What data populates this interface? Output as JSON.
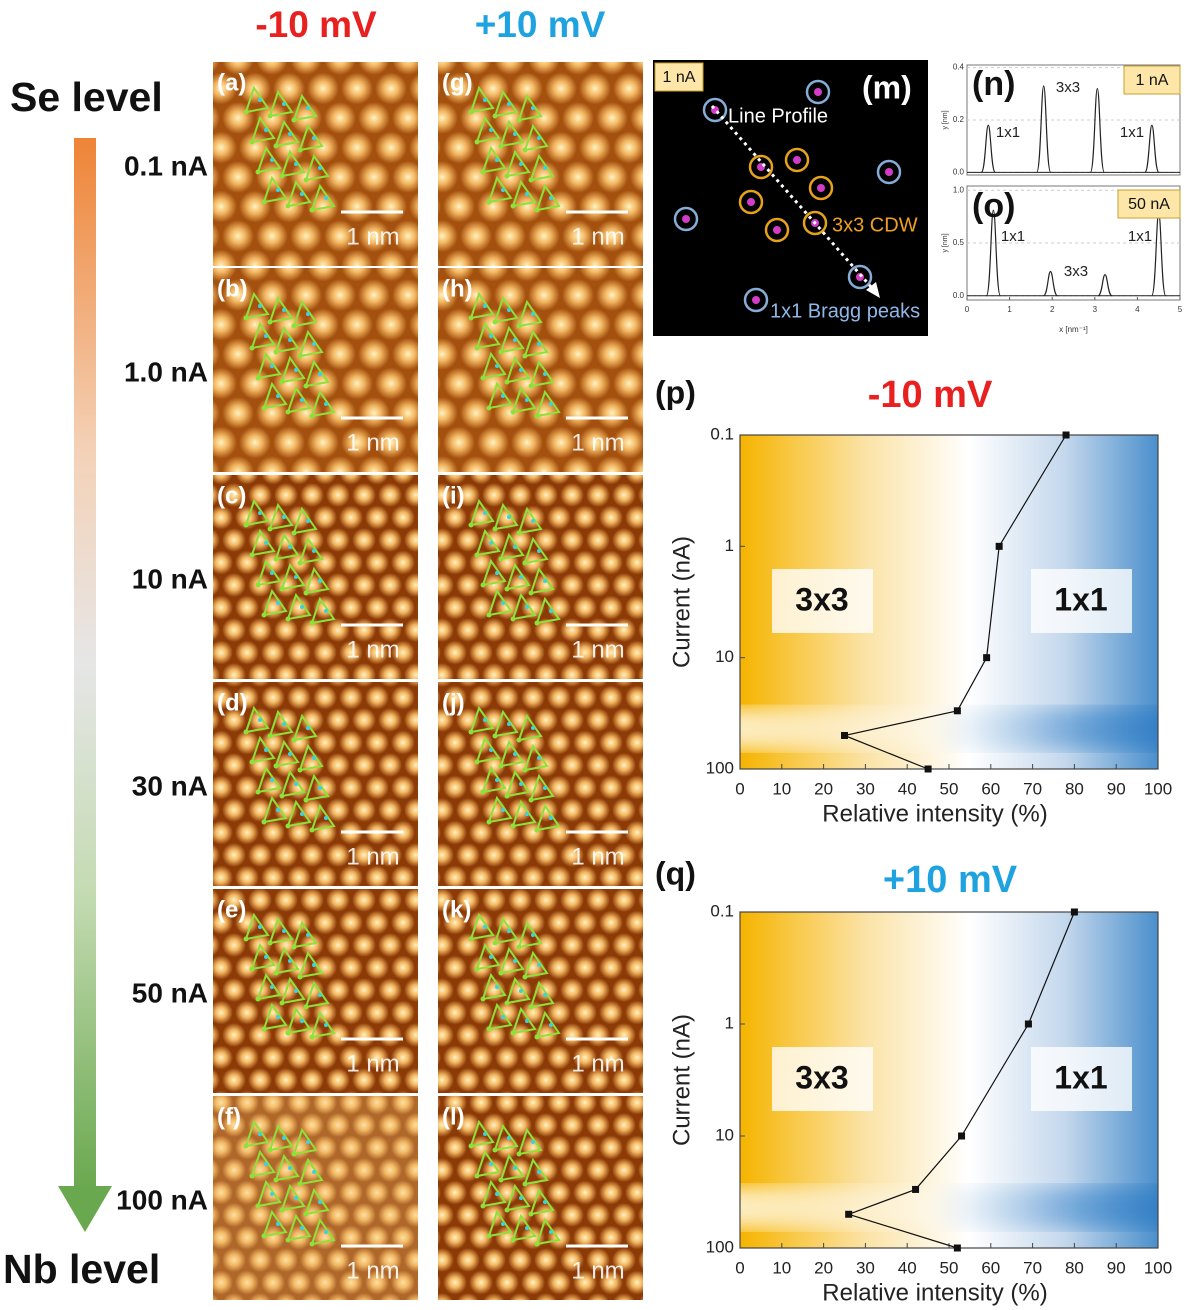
{
  "column_headers": [
    "-10 mV",
    "+10 mV"
  ],
  "top_label": "Se level",
  "bottom_label": "Nb level",
  "current_labels": [
    "0.1 nA",
    "1.0 nA",
    "10 nA",
    "30 nA",
    "50 nA",
    "100 nA"
  ],
  "panels": [
    {
      "label": "(a)",
      "scale": "1 nm"
    },
    {
      "label": "(b)",
      "scale": "1 nm"
    },
    {
      "label": "(c)",
      "scale": "1 nm"
    },
    {
      "label": "(d)",
      "scale": "1 nm"
    },
    {
      "label": "(e)",
      "scale": "1 nm"
    },
    {
      "label": "(f)",
      "scale": "1 nm"
    },
    {
      "label": "(g)",
      "scale": "1 nm"
    },
    {
      "label": "(h)",
      "scale": "1 nm"
    },
    {
      "label": "(i)",
      "scale": "1 nm"
    },
    {
      "label": "(j)",
      "scale": "1 nm"
    },
    {
      "label": "(k)",
      "scale": "1 nm"
    },
    {
      "label": "(l)",
      "scale": "1 nm"
    }
  ],
  "fft": {
    "label": "(m)",
    "current": "1 nA",
    "line_profile": "Line Profile",
    "cdw": "3x3 CDW",
    "bragg": "1x1 Bragg peaks"
  },
  "chart_data": [
    {
      "type": "profile",
      "panel_label": "(n)",
      "current": "1 nA",
      "x": [
        0.5,
        1.8,
        3.06,
        4.34
      ],
      "values": [
        0.18,
        0.33,
        0.32,
        0.18
      ],
      "annotations": [
        "1x1",
        "3x3",
        "1x1"
      ],
      "xlim": [
        0,
        5
      ],
      "ylim": [
        -0.01,
        0.41
      ],
      "yticks": [
        {
          "value": 0,
          "label": "0.0"
        },
        0.2,
        0.4
      ],
      "ylabel": "y [nm]",
      "color": "#222222"
    },
    {
      "type": "profile",
      "panel_label": "(o)",
      "current": "50 nA",
      "x": [
        0.62,
        1.96,
        3.24,
        4.5
      ],
      "values": [
        0.81,
        0.23,
        0.2,
        0.78
      ],
      "annotations": [
        "1x1",
        "3x3",
        "1x1"
      ],
      "xlim": [
        0,
        5
      ],
      "ylim": [
        -0.04,
        1.04
      ],
      "xticks": [
        0,
        1,
        2,
        3,
        4,
        5
      ],
      "yticks": [
        {
          "value": 0,
          "label": "0.0"
        },
        0.5,
        {
          "value": 1,
          "label": "1.0"
        }
      ],
      "xlabel": "x [nm⁻¹]",
      "ylabel": "y [nm]",
      "color": "#222222"
    },
    {
      "type": "line",
      "panel_label": "(p)",
      "title": "-10 mV",
      "title_color": "#e8201f",
      "x": [
        78,
        62,
        59,
        52,
        25,
        45
      ],
      "values": [
        0.1,
        1,
        10,
        30,
        50,
        100
      ],
      "xlim": [
        0,
        100
      ],
      "ylim": [
        0.1,
        100
      ],
      "ylog": true,
      "y_inverted": true,
      "xticks": [
        0,
        10,
        20,
        30,
        40,
        50,
        60,
        70,
        80,
        90,
        100
      ],
      "yticks": [
        0.1,
        1,
        10,
        100
      ],
      "xlabel": "Relative intensity (%)",
      "ylabel": "Current (nA)",
      "regions": [
        "3x3",
        "1x1"
      ],
      "color": "#111111"
    },
    {
      "type": "line",
      "panel_label": "(q)",
      "title": "+10 mV",
      "title_color": "#1fa3e0",
      "x": [
        80,
        69,
        53,
        42,
        26,
        52
      ],
      "values": [
        0.1,
        1,
        10,
        30,
        50,
        100
      ],
      "xlim": [
        0,
        100
      ],
      "ylim": [
        0.1,
        100
      ],
      "ylog": true,
      "y_inverted": true,
      "xticks": [
        0,
        10,
        20,
        30,
        40,
        50,
        60,
        70,
        80,
        90,
        100
      ],
      "yticks": [
        0.1,
        1,
        10,
        100
      ],
      "xlabel": "Relative intensity (%)",
      "ylabel": "Current (nA)",
      "regions": [
        "3x3",
        "1x1"
      ],
      "color": "#111111"
    }
  ]
}
